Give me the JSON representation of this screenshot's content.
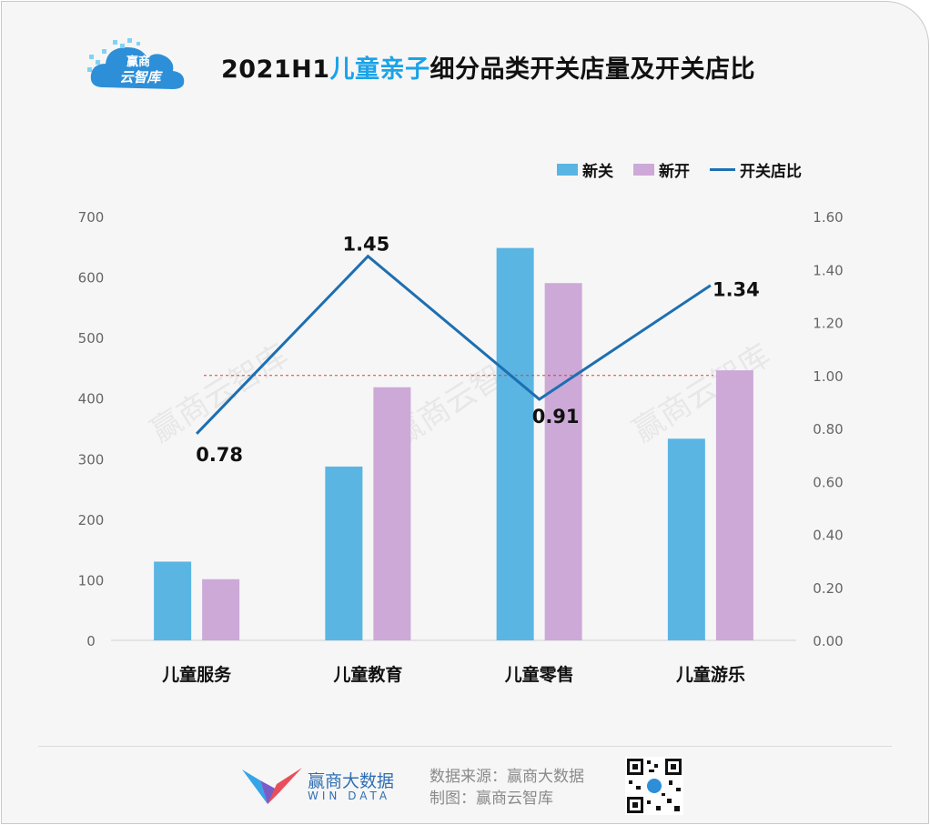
{
  "title": {
    "prefix": "2021H1",
    "highlight": "儿童亲子",
    "suffix": "细分品类开关店量及开关店比"
  },
  "logo": {
    "line1": "赢商",
    "line2": "云智库"
  },
  "legend": [
    {
      "label": "新关",
      "kind": "bar",
      "color": "#5ab5e3"
    },
    {
      "label": "新开",
      "kind": "bar",
      "color": "#cda9d8"
    },
    {
      "label": "开关店比",
      "kind": "line",
      "color": "#1d6fb2"
    }
  ],
  "watermark": "赢商云智库",
  "chart_data": {
    "type": "bar",
    "categories": [
      "儿童服务",
      "儿童教育",
      "儿童零售",
      "儿童游乐"
    ],
    "series": [
      {
        "name": "新关",
        "type": "bar",
        "axis": "left",
        "color": "#5ab5e3",
        "values": [
          130,
          287,
          648,
          333
        ]
      },
      {
        "name": "新开",
        "type": "bar",
        "axis": "left",
        "color": "#cda9d8",
        "values": [
          101,
          418,
          590,
          446
        ]
      },
      {
        "name": "开关店比",
        "type": "line",
        "axis": "right",
        "color": "#1d6fb2",
        "values": [
          0.78,
          1.45,
          0.91,
          1.34
        ]
      }
    ],
    "data_labels": [
      "0.78",
      "1.45",
      "0.91",
      "1.34"
    ],
    "left_axis": {
      "min": 0,
      "max": 700,
      "ticks": [
        "0",
        "100",
        "200",
        "300",
        "400",
        "500",
        "600",
        "700"
      ]
    },
    "right_axis": {
      "min": 0,
      "max": 1.6,
      "ticks": [
        "0.00",
        "0.20",
        "0.40",
        "0.60",
        "0.80",
        "1.00",
        "1.20",
        "1.40",
        "1.60"
      ]
    },
    "reference_line": {
      "axis": "right",
      "value": 1.0,
      "style": "dashed",
      "color": "#e23b3b"
    }
  },
  "footer": {
    "brand_name": "赢商大数据",
    "brand_sub": "WIN DATA",
    "source": "数据来源：赢商大数据",
    "made_by": "制图：赢商云智库"
  }
}
